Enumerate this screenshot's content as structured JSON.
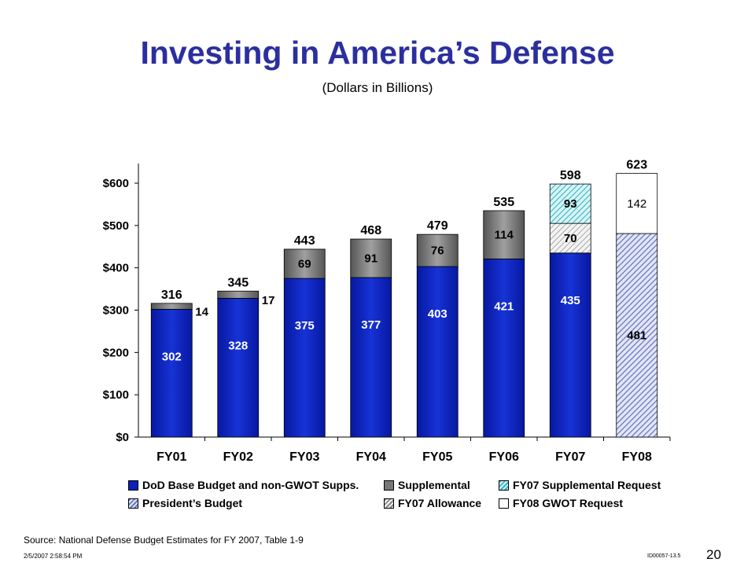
{
  "slide": {
    "title": "Investing in America’s Defense",
    "subtitle": "(Dollars in Billions)",
    "source": "Source: National Defense Budget Estimates for FY 2007, Table 1-9",
    "timestamp": "2/5/2007 2:58:54 PM",
    "doc_id": "ID00057-13.5",
    "page_number": "20"
  },
  "legend": {
    "base": "DoD Base Budget and non-GWOT Supps.",
    "supplemental": "Supplemental",
    "fy07_request": "FY07 Supplemental Request",
    "presidents_budget": "President’s Budget",
    "fy07_allowance": "FY07 Allowance",
    "fy08_gwot": "FY08 GWOT Request"
  },
  "colors": {
    "title": "#2b2f9e",
    "base": "#0b22b8",
    "supplemental": "#777777",
    "fy07_request": "#38b6c3",
    "presidents_budget": "#6a79c0",
    "fy07_allowance": "#8a8a8a",
    "fy08_gwot": "#ffffff"
  },
  "chart_data": {
    "type": "bar",
    "stacked": true,
    "categories": [
      "FY01",
      "FY02",
      "FY03",
      "FY04",
      "FY05",
      "FY06",
      "FY07",
      "FY08"
    ],
    "ylim": [
      0,
      650
    ],
    "yticks": [
      0,
      100,
      200,
      300,
      400,
      500,
      600
    ],
    "ytick_labels": [
      "$0",
      "$100",
      "$200",
      "$300",
      "$400",
      "$500",
      "$600"
    ],
    "totals": [
      316,
      345,
      443,
      468,
      479,
      535,
      598,
      623
    ],
    "series": [
      {
        "name": "DoD Base Budget and non-GWOT Supps.",
        "key": "base",
        "values": [
          302,
          328,
          375,
          377,
          403,
          421,
          435,
          null
        ]
      },
      {
        "name": "President’s Budget",
        "key": "presidents_budget",
        "values": [
          null,
          null,
          null,
          null,
          null,
          null,
          null,
          481
        ]
      },
      {
        "name": "Supplemental",
        "key": "supplemental",
        "values": [
          14,
          17,
          69,
          91,
          76,
          114,
          null,
          null
        ]
      },
      {
        "name": "FY07 Allowance",
        "key": "fy07_allowance",
        "values": [
          null,
          null,
          null,
          null,
          null,
          null,
          70,
          null
        ]
      },
      {
        "name": "FY07 Supplemental Request",
        "key": "fy07_request",
        "values": [
          null,
          null,
          null,
          null,
          null,
          null,
          93,
          null
        ]
      },
      {
        "name": "FY08 GWOT Request",
        "key": "fy08_gwot",
        "values": [
          null,
          null,
          null,
          null,
          null,
          null,
          null,
          142
        ]
      }
    ]
  }
}
